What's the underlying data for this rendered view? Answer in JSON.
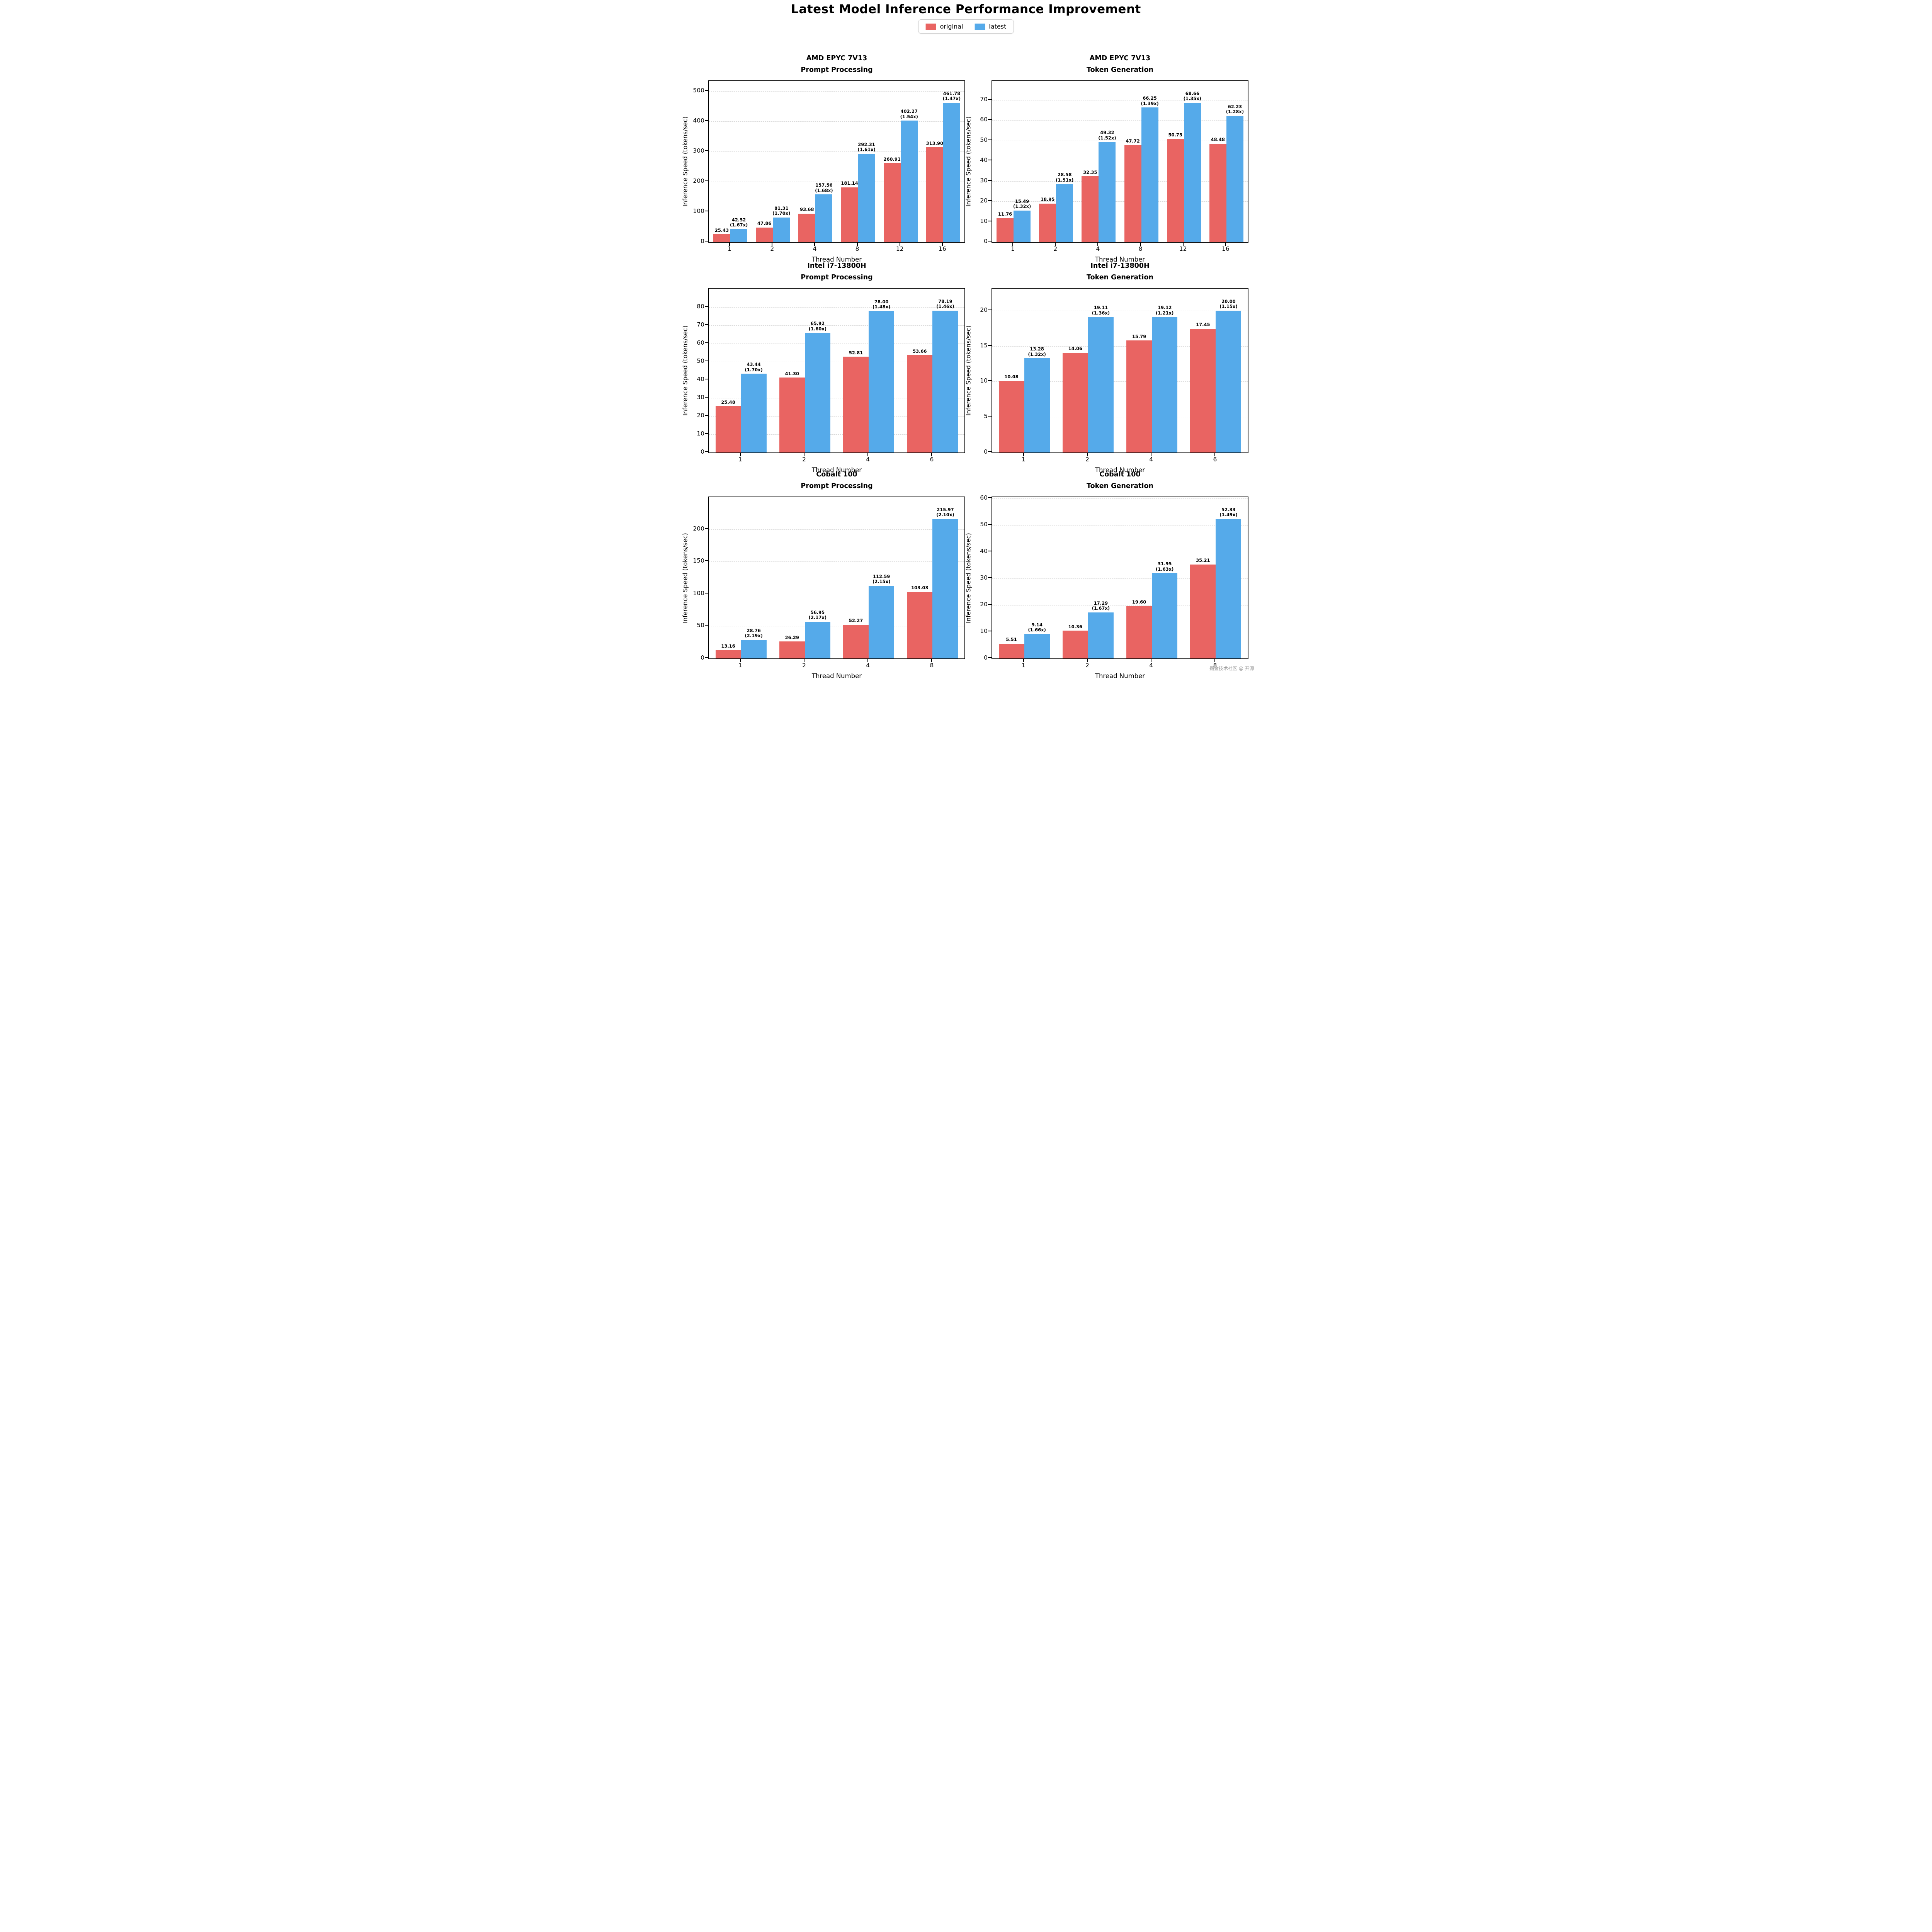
{
  "page_title": "Latest Model Inference Performance Improvement",
  "legend": {
    "items": [
      {
        "label": "original",
        "color": "#e96462"
      },
      {
        "label": "latest",
        "color": "#55aaea"
      }
    ]
  },
  "watermark_text": "掘金技术社区 @ 开源之眼",
  "chart_data": [
    {
      "type": "bar",
      "title": "AMD EPYC 7V13",
      "subtitle": "Prompt Processing",
      "xlabel": "Thread Number",
      "ylabel": "Inference Speed (tokens/sec)",
      "categories": [
        "1",
        "2",
        "4",
        "8",
        "12",
        "16"
      ],
      "yticks": [
        0,
        100,
        200,
        300,
        400,
        500
      ],
      "ymax": 533,
      "grid": "dashed-horizontal",
      "series": [
        {
          "name": "original",
          "color": "#e96462",
          "values": [
            25.43,
            47.86,
            93.68,
            181.14,
            260.91,
            313.9
          ],
          "labels": [
            "25.43",
            "47.86",
            "93.68",
            "181.14",
            "260.91",
            "313.90"
          ]
        },
        {
          "name": "latest",
          "color": "#55aaea",
          "values": [
            42.52,
            81.31,
            157.56,
            292.31,
            402.27,
            461.78
          ],
          "labels": [
            "42.52",
            "81.31",
            "157.56",
            "292.31",
            "402.27",
            "461.78"
          ],
          "speedups": [
            "(1.67x)",
            "(1.70x)",
            "(1.68x)",
            "(1.61x)",
            "(1.54x)",
            "(1.47x)"
          ]
        }
      ]
    },
    {
      "type": "bar",
      "title": "AMD EPYC 7V13",
      "subtitle": "Token Generation",
      "xlabel": "Thread Number",
      "ylabel": "Inference Speed (tokens/sec)",
      "categories": [
        "1",
        "2",
        "4",
        "8",
        "12",
        "16"
      ],
      "yticks": [
        0,
        10,
        20,
        30,
        40,
        50,
        60,
        70
      ],
      "ymax": 79.3,
      "grid": "dashed-horizontal",
      "series": [
        {
          "name": "original",
          "color": "#e96462",
          "values": [
            11.76,
            18.95,
            32.35,
            47.72,
            50.75,
            48.48
          ],
          "labels": [
            "11.76",
            "18.95",
            "32.35",
            "47.72",
            "50.75",
            "48.48"
          ]
        },
        {
          "name": "latest",
          "color": "#55aaea",
          "values": [
            15.49,
            28.58,
            49.32,
            66.25,
            68.66,
            62.23
          ],
          "labels": [
            "15.49",
            "28.58",
            "49.32",
            "66.25",
            "68.66",
            "62.23"
          ],
          "speedups": [
            "(1.32x)",
            "(1.51x)",
            "(1.52x)",
            "(1.39x)",
            "(1.35x)",
            "(1.28x)"
          ]
        }
      ]
    },
    {
      "type": "bar",
      "title": "Intel i7-13800H",
      "subtitle": "Prompt Processing",
      "xlabel": "Thread Number",
      "ylabel": "Inference Speed (tokens/sec)",
      "categories": [
        "1",
        "2",
        "4",
        "6"
      ],
      "yticks": [
        0,
        10,
        20,
        30,
        40,
        50,
        60,
        70,
        80
      ],
      "ymax": 90.3,
      "grid": "dashed-horizontal",
      "series": [
        {
          "name": "original",
          "color": "#e96462",
          "values": [
            25.48,
            41.3,
            52.81,
            53.66
          ],
          "labels": [
            "25.48",
            "41.30",
            "52.81",
            "53.66"
          ]
        },
        {
          "name": "latest",
          "color": "#55aaea",
          "values": [
            43.44,
            65.92,
            78.0,
            78.19
          ],
          "labels": [
            "43.44",
            "65.92",
            "78.00",
            "78.19"
          ],
          "speedups": [
            "(1.70x)",
            "(1.60x)",
            "(1.48x)",
            "(1.46x)"
          ]
        }
      ]
    },
    {
      "type": "bar",
      "title": "Intel i7-13800H",
      "subtitle": "Token Generation",
      "xlabel": "Thread Number",
      "ylabel": "Inference Speed (tokens/sec)",
      "categories": [
        "1",
        "2",
        "4",
        "6"
      ],
      "yticks": [
        0,
        5,
        10,
        15,
        20
      ],
      "ymax": 23.1,
      "grid": "dashed-horizontal",
      "series": [
        {
          "name": "original",
          "color": "#e96462",
          "values": [
            10.08,
            14.06,
            15.79,
            17.45
          ],
          "labels": [
            "10.08",
            "14.06",
            "15.79",
            "17.45"
          ]
        },
        {
          "name": "latest",
          "color": "#55aaea",
          "values": [
            13.28,
            19.11,
            19.12,
            20.0
          ],
          "labels": [
            "13.28",
            "19.11",
            "19.12",
            "20.00"
          ],
          "speedups": [
            "(1.32x)",
            "(1.36x)",
            "(1.21x)",
            "(1.15x)"
          ]
        }
      ]
    },
    {
      "type": "bar",
      "title": "Cobalt 100",
      "subtitle": "Prompt Processing",
      "xlabel": "Thread Number",
      "ylabel": "Inference Speed (tokens/sec)",
      "categories": [
        "1",
        "2",
        "4",
        "8"
      ],
      "yticks": [
        0,
        50,
        100,
        150,
        200
      ],
      "ymax": 249.4,
      "grid": "dashed-horizontal",
      "series": [
        {
          "name": "original",
          "color": "#e96462",
          "values": [
            13.16,
            26.29,
            52.27,
            103.03
          ],
          "labels": [
            "13.16",
            "26.29",
            "52.27",
            "103.03"
          ]
        },
        {
          "name": "latest",
          "color": "#55aaea",
          "values": [
            28.76,
            56.95,
            112.59,
            215.97
          ],
          "labels": [
            "28.76",
            "56.95",
            "112.59",
            "215.97"
          ],
          "speedups": [
            "(2.19x)",
            "(2.17x)",
            "(2.15x)",
            "(2.10x)"
          ]
        }
      ]
    },
    {
      "type": "bar",
      "title": "Cobalt 100",
      "subtitle": "Token Generation",
      "xlabel": "Thread Number",
      "ylabel": "Inference Speed (tokens/sec)",
      "categories": [
        "1",
        "2",
        "4",
        "8"
      ],
      "yticks": [
        0,
        10,
        20,
        30,
        40,
        50,
        60
      ],
      "ymax": 60.4,
      "grid": "dashed-horizontal",
      "series": [
        {
          "name": "original",
          "color": "#e96462",
          "values": [
            5.51,
            10.36,
            19.6,
            35.21
          ],
          "labels": [
            "5.51",
            "10.36",
            "19.60",
            "35.21"
          ]
        },
        {
          "name": "latest",
          "color": "#55aaea",
          "values": [
            9.14,
            17.29,
            31.95,
            52.33
          ],
          "labels": [
            "9.14",
            "17.29",
            "31.95",
            "52.33"
          ],
          "speedups": [
            "(1.66x)",
            "(1.67x)",
            "(1.63x)",
            "(1.49x)"
          ]
        }
      ]
    }
  ]
}
